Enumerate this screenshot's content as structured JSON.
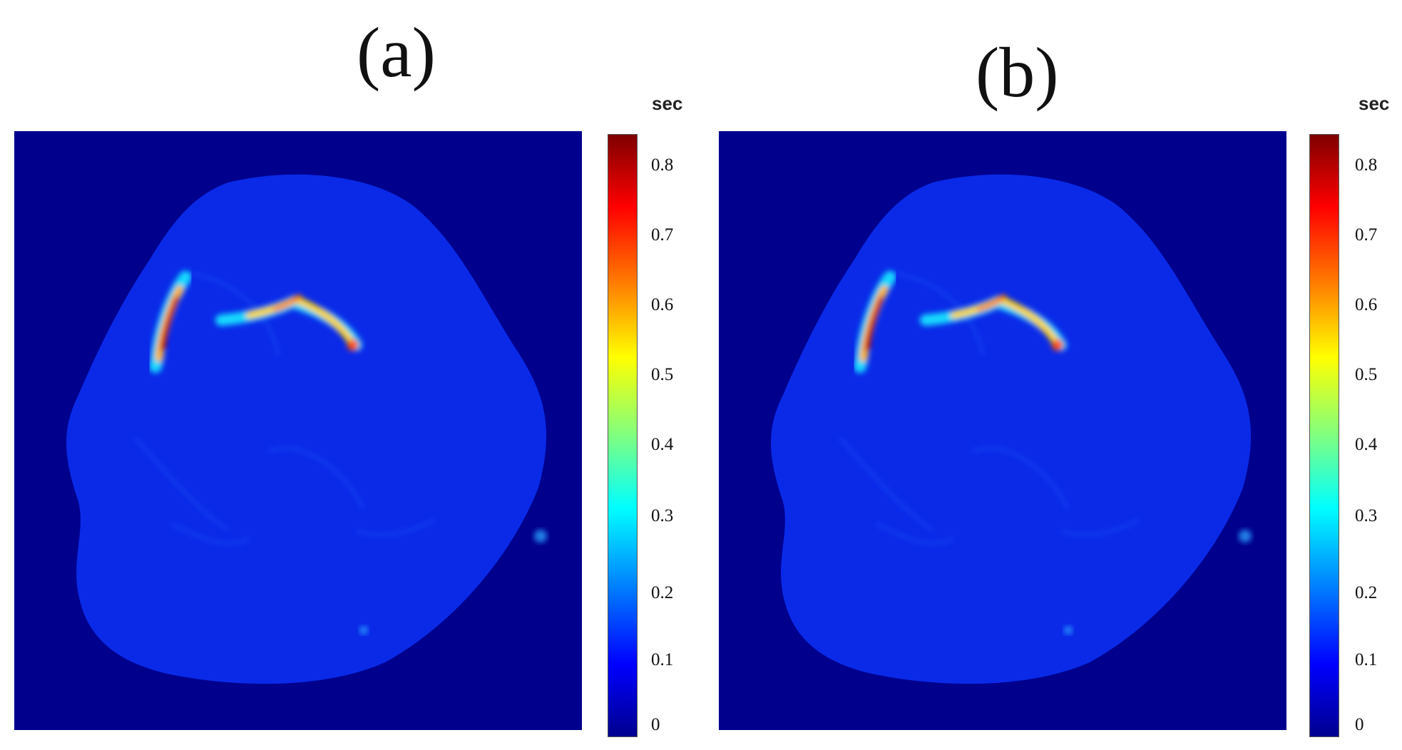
{
  "panels": [
    {
      "label": "(a)",
      "colorbar": {
        "unit": "sec",
        "ticks": [
          "0.8",
          "0.7",
          "0.6",
          "0.5",
          "0.4",
          "0.3",
          "0.2",
          "0.1",
          "0"
        ]
      }
    },
    {
      "label": "(b)",
      "colorbar": {
        "unit": "sec",
        "ticks": [
          "0.8",
          "0.7",
          "0.6",
          "0.5",
          "0.4",
          "0.3",
          "0.2",
          "0.1",
          "0"
        ]
      }
    }
  ],
  "colormap": {
    "name": "jet",
    "background": "#00008d",
    "tissue": "#0a2ae8"
  },
  "colorbar_range": [
    0,
    0.85
  ]
}
